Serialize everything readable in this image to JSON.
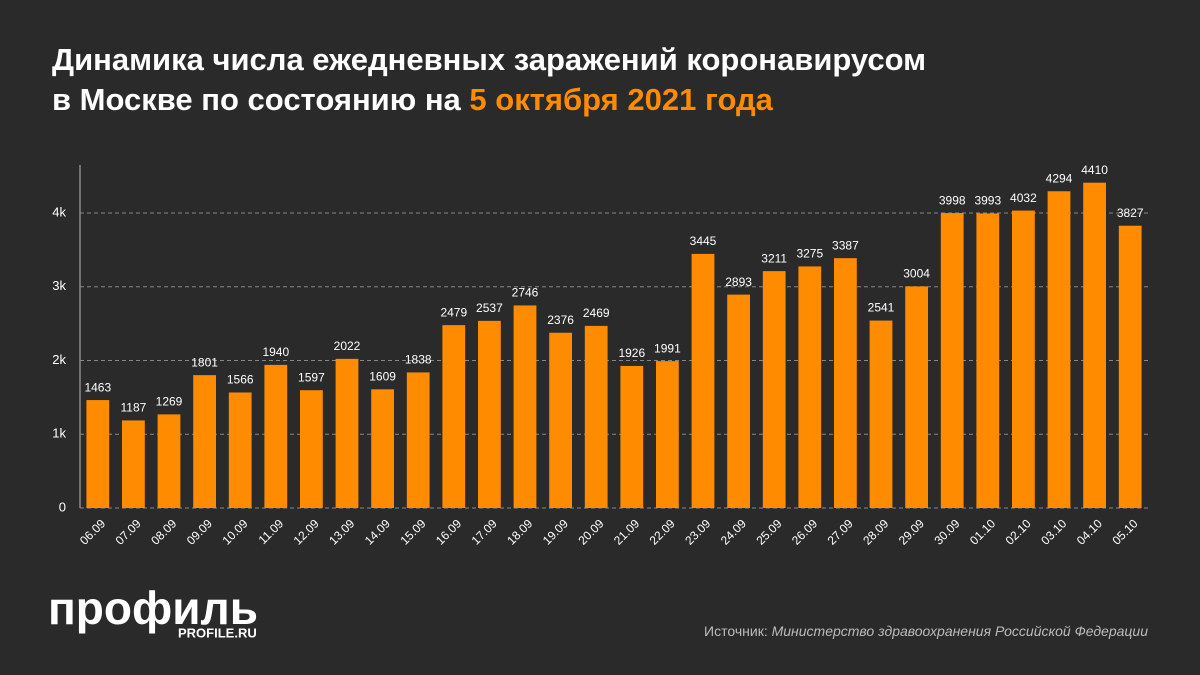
{
  "chart_data": {
    "type": "bar",
    "title_lines": [
      "Динамика числа ежедневных заражений коронавирусом",
      "в Москве по состоянию на",
      "5 октября 2021 года"
    ],
    "categories": [
      "06.09",
      "07.09",
      "08.09",
      "09.09",
      "10.09",
      "11.09",
      "12.09",
      "13.09",
      "14.09",
      "15.09",
      "16.09",
      "17.09",
      "18.09",
      "19.09",
      "20.09",
      "21.09",
      "22.09",
      "23.09",
      "24.09",
      "25.09",
      "26.09",
      "27.09",
      "28.09",
      "29.09",
      "30.09",
      "01.10",
      "02.10",
      "03.10",
      "04.10",
      "05.10"
    ],
    "values": [
      1463,
      1187,
      1269,
      1801,
      1566,
      1940,
      1597,
      2022,
      1609,
      1838,
      2479,
      2537,
      2746,
      2376,
      2469,
      1926,
      1991,
      3445,
      2893,
      3211,
      3275,
      3387,
      2541,
      3004,
      3998,
      3993,
      4032,
      4294,
      4410,
      3827
    ],
    "color": "#ff8c00",
    "ylim": [
      0,
      4650
    ],
    "yticks": [
      0,
      {
        "value": 1000,
        "label": "1k"
      },
      {
        "value": 2000,
        "label": "2k"
      },
      {
        "value": 3000,
        "label": "3k"
      },
      {
        "value": 4000,
        "label": "4k"
      }
    ],
    "grid": true
  },
  "footer": {
    "logo": "профиль",
    "site": "PROFILE.RU",
    "source_label": "Источник:",
    "source": "Министерство здравоохранения Российской Федерации"
  }
}
